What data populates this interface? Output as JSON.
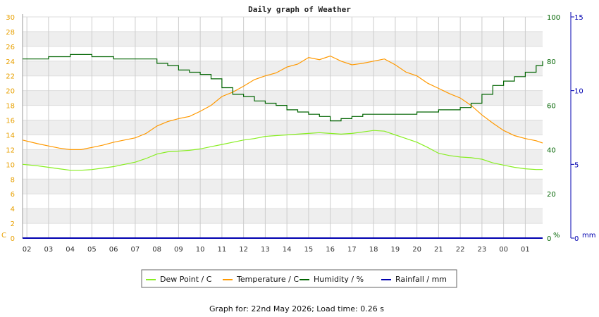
{
  "chart_data": {
    "type": "line",
    "title": "Daily graph of Weather",
    "footer": "Graph for: 22nd May 2026; Load time: 0.26 s",
    "x_ticks": [
      "02",
      "03",
      "04",
      "05",
      "06",
      "07",
      "08",
      "09",
      "10",
      "11",
      "12",
      "13",
      "14",
      "15",
      "16",
      "17",
      "18",
      "19",
      "20",
      "21",
      "22",
      "23",
      "00",
      "01"
    ],
    "axes": {
      "left": {
        "unit": "C",
        "range": [
          0,
          30
        ],
        "ticks": [
          "0",
          "2",
          "4",
          "6",
          "8",
          "10",
          "12",
          "14",
          "16",
          "18",
          "20",
          "22",
          "24",
          "26",
          "28",
          "30"
        ],
        "color": "#e8a000"
      },
      "right_humidity": {
        "unit": "%",
        "range": [
          0,
          100
        ],
        "ticks": [
          "0",
          "20",
          "40",
          "60",
          "80",
          "100"
        ],
        "color": "#006400"
      },
      "right_rain": {
        "unit": "mm",
        "range": [
          0,
          15
        ],
        "ticks": [
          "0",
          "5",
          "10",
          "15"
        ],
        "color": "#0000b0"
      }
    },
    "grid": true,
    "legend_placement": "bottom",
    "series": [
      {
        "name": "Dew Point / C",
        "color": "#88ee22",
        "axis": "left",
        "x": [
          1.8,
          2.5,
          3.0,
          3.5,
          4.0,
          4.5,
          5.0,
          5.5,
          6.0,
          6.5,
          7.0,
          7.5,
          8.0,
          8.5,
          9.0,
          9.5,
          10.0,
          10.5,
          11.0,
          11.5,
          12.0,
          12.5,
          13.0,
          13.5,
          14.0,
          14.5,
          15.0,
          15.5,
          16.0,
          16.5,
          17.0,
          17.5,
          18.0,
          18.5,
          19.0,
          19.5,
          20.0,
          20.5,
          21.0,
          21.5,
          22.0,
          22.5,
          23.0,
          23.5,
          24.0,
          24.5,
          25.0,
          25.5,
          25.8
        ],
        "y": [
          10.0,
          9.8,
          9.6,
          9.4,
          9.2,
          9.2,
          9.3,
          9.5,
          9.7,
          10.0,
          10.3,
          10.8,
          11.4,
          11.7,
          11.8,
          11.9,
          12.1,
          12.4,
          12.7,
          13.0,
          13.3,
          13.5,
          13.8,
          13.9,
          14.0,
          14.1,
          14.2,
          14.3,
          14.2,
          14.1,
          14.2,
          14.4,
          14.6,
          14.5,
          14.0,
          13.5,
          13.0,
          12.3,
          11.5,
          11.2,
          11.0,
          10.9,
          10.7,
          10.2,
          9.9,
          9.6,
          9.4,
          9.3,
          9.3
        ]
      },
      {
        "name": "Temperature / C",
        "color": "#ff9900",
        "axis": "left",
        "x": [
          1.8,
          2.5,
          3.0,
          3.5,
          4.0,
          4.5,
          5.0,
          5.5,
          6.0,
          6.5,
          7.0,
          7.5,
          8.0,
          8.5,
          9.0,
          9.5,
          10.0,
          10.5,
          11.0,
          11.5,
          12.0,
          12.5,
          13.0,
          13.5,
          14.0,
          14.5,
          15.0,
          15.5,
          16.0,
          16.5,
          17.0,
          17.5,
          18.0,
          18.5,
          19.0,
          19.5,
          20.0,
          20.5,
          21.0,
          21.5,
          22.0,
          22.5,
          23.0,
          23.5,
          24.0,
          24.5,
          25.0,
          25.5,
          25.8
        ],
        "y": [
          13.3,
          12.8,
          12.5,
          12.2,
          12.0,
          12.0,
          12.3,
          12.6,
          13.0,
          13.3,
          13.6,
          14.2,
          15.2,
          15.8,
          16.2,
          16.5,
          17.2,
          18.0,
          19.2,
          19.8,
          20.6,
          21.5,
          22.0,
          22.4,
          23.2,
          23.6,
          24.5,
          24.2,
          24.7,
          24.0,
          23.5,
          23.7,
          24.0,
          24.3,
          23.5,
          22.5,
          22.0,
          21.0,
          20.3,
          19.6,
          19.0,
          18.0,
          16.7,
          15.6,
          14.6,
          13.9,
          13.5,
          13.2,
          12.9
        ]
      },
      {
        "name": "Humidity / %",
        "color": "#006400",
        "axis": "right_humidity",
        "x": [
          1.8,
          2.5,
          3.0,
          3.5,
          4.0,
          4.5,
          5.0,
          5.5,
          6.0,
          6.5,
          7.0,
          7.5,
          8.0,
          8.5,
          9.0,
          9.5,
          10.0,
          10.5,
          11.0,
          11.5,
          12.0,
          12.5,
          13.0,
          13.5,
          14.0,
          14.5,
          15.0,
          15.5,
          16.0,
          16.5,
          17.0,
          17.5,
          18.0,
          18.5,
          19.0,
          19.5,
          20.0,
          20.5,
          21.0,
          21.5,
          22.0,
          22.5,
          23.0,
          23.5,
          24.0,
          24.5,
          25.0,
          25.5,
          25.8
        ],
        "y": [
          81,
          81,
          82,
          82,
          83,
          83,
          82,
          82,
          81,
          81,
          81,
          81,
          79,
          78,
          76,
          75,
          74,
          72,
          68,
          65,
          64,
          62,
          61,
          60,
          58,
          57,
          56,
          55,
          53,
          54,
          55,
          56,
          56,
          56,
          56,
          56,
          57,
          57,
          58,
          58,
          59,
          61,
          65,
          69,
          71,
          73,
          75,
          78,
          80
        ]
      },
      {
        "name": "Rainfall / mm",
        "color": "#0000b0",
        "axis": "right_rain",
        "x": [
          1.8,
          25.8
        ],
        "y": [
          0,
          0
        ]
      }
    ]
  }
}
